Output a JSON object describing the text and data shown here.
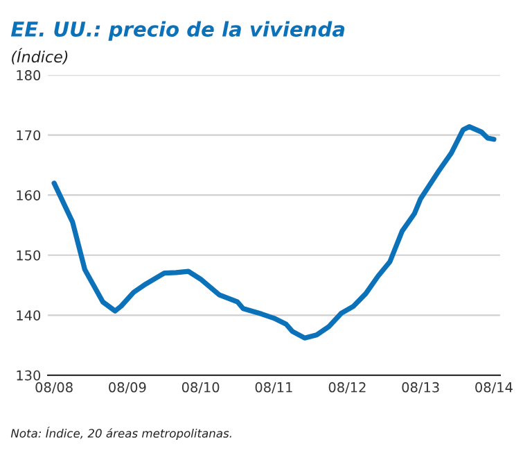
{
  "chart_data": {
    "type": "line",
    "title": "EE. UU.: precio de la vivienda",
    "subtitle": "(Índice)",
    "x": [
      "2008-08",
      "2008-11",
      "2009-01",
      "2009-04",
      "2009-06",
      "2009-07",
      "2009-09",
      "2009-11",
      "2010-02",
      "2010-04",
      "2010-06",
      "2010-08",
      "2010-11",
      "2011-02",
      "2011-03",
      "2011-06",
      "2011-08",
      "2011-10",
      "2011-11",
      "2012-01",
      "2012-03",
      "2012-05",
      "2012-07",
      "2012-09",
      "2012-11",
      "2013-01",
      "2013-03",
      "2013-05",
      "2013-07",
      "2013-08",
      "2013-11",
      "2014-01",
      "2014-03",
      "2014-04",
      "2014-06",
      "2014-07",
      "2014-08"
    ],
    "series": [
      {
        "color": "#0b72b9",
        "values": [
          162,
          155.5,
          147.6,
          142.2,
          140.7,
          141.5,
          143.8,
          145.2,
          147.0,
          147.1,
          147.3,
          146.0,
          143.4,
          142.2,
          141.1,
          140.2,
          139.5,
          138.5,
          137.3,
          136.2,
          136.7,
          138.1,
          140.3,
          141.5,
          143.6,
          146.5,
          148.9,
          154.0,
          156.9,
          159.4,
          164.1,
          167.0,
          170.9,
          171.4,
          170.5,
          169.5,
          169.3
        ]
      }
    ],
    "xlim": [
      "2008-07",
      "2014-09"
    ],
    "xticks": [
      {
        "value": "2008-08",
        "label": "08/08"
      },
      {
        "value": "2009-08",
        "label": "08/09"
      },
      {
        "value": "2010-08",
        "label": "08/10"
      },
      {
        "value": "2011-08",
        "label": "08/11"
      },
      {
        "value": "2012-08",
        "label": "08/12"
      },
      {
        "value": "2013-08",
        "label": "08/13"
      },
      {
        "value": "2014-08",
        "label": "08/14"
      }
    ],
    "ylim": [
      130,
      180
    ],
    "yticks": [
      130,
      140,
      150,
      160,
      170,
      180
    ],
    "grid": "y",
    "legend": false,
    "marker": "none",
    "line_style": "solid",
    "annotations": [
      "Nota: Índice, 20 áreas metropolitanas."
    ]
  }
}
